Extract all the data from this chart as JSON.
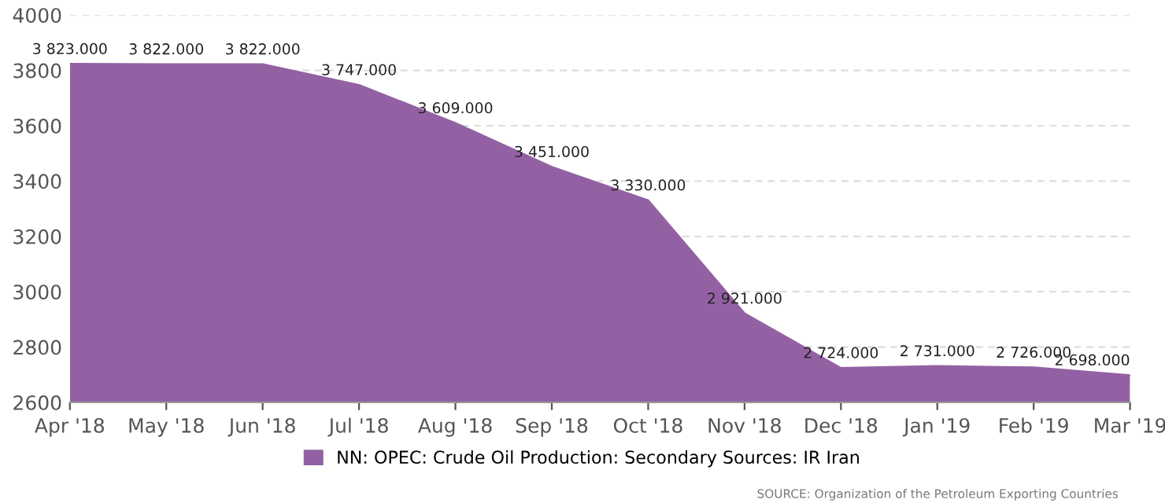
{
  "chart_data": {
    "type": "area",
    "categories": [
      "Apr '18",
      "May '18",
      "Jun '18",
      "Jul '18",
      "Aug '18",
      "Sep '18",
      "Oct '18",
      "Nov '18",
      "Dec '18",
      "Jan '19",
      "Feb '19",
      "Mar '19"
    ],
    "series": [
      {
        "name": "NN: OPEC: Crude Oil Production: Secondary Sources: IR Iran",
        "color": "#9361a3",
        "values": [
          3823,
          3822,
          3822,
          3747,
          3609,
          3451,
          3330,
          2921,
          2724,
          2731,
          2726,
          2698
        ],
        "value_labels": [
          "3 823.000",
          "3 822.000",
          "3 822.000",
          "3 747.000",
          "3 609.000",
          "3 451.000",
          "3 330.000",
          "2 921.000",
          "2 724.000",
          "2 731.000",
          "2 726.000",
          "2 698.000"
        ]
      }
    ],
    "ylim": [
      2600,
      4000
    ],
    "yticks": [
      2600,
      2800,
      3000,
      3200,
      3400,
      3600,
      3800,
      4000
    ],
    "grid": "y",
    "legend": "bottom",
    "annotations": [
      "SOURCE: Organization of the Petroleum Exporting Countries"
    ]
  }
}
